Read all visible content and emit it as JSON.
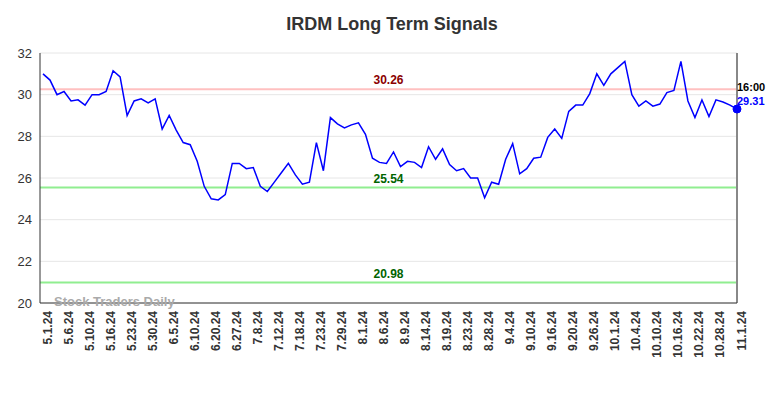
{
  "chart_data": {
    "type": "line",
    "title": "IRDM Long Term Signals",
    "categories": [
      "5.1.24",
      null,
      null,
      "5.6.24",
      null,
      null,
      "5.10.24",
      null,
      null,
      "5.16.24",
      null,
      null,
      "5.23.24",
      null,
      null,
      "5.30.24",
      null,
      null,
      "6.5.24",
      null,
      null,
      "6.10.24",
      null,
      null,
      "6.20.24",
      null,
      null,
      "6.27.24",
      null,
      null,
      "7.8.24",
      null,
      null,
      "7.12.24",
      null,
      null,
      "7.18.24",
      null,
      null,
      "7.23.24",
      null,
      null,
      "7.29.24",
      null,
      null,
      "8.1.24",
      null,
      null,
      "8.6.24",
      null,
      null,
      "8.9.24",
      null,
      null,
      "8.14.24",
      null,
      null,
      "8.19.24",
      null,
      null,
      "8.23.24",
      null,
      null,
      "8.28.24",
      null,
      null,
      "9.4.24",
      null,
      null,
      "9.10.24",
      null,
      null,
      "9.16.24",
      null,
      null,
      "9.20.24",
      null,
      null,
      "9.26.24",
      null,
      null,
      "10.1.24",
      null,
      null,
      "10.4.24",
      null,
      null,
      "10.10.24",
      null,
      null,
      "10.16.24",
      null,
      null,
      "10.22.24",
      null,
      null,
      "10.28.24",
      null,
      null,
      "11.1.24"
    ],
    "values": [
      31.0,
      30.7,
      30.0,
      30.15,
      29.7,
      29.75,
      29.5,
      30.0,
      30.0,
      30.15,
      31.15,
      30.85,
      29.0,
      29.7,
      29.8,
      29.6,
      29.8,
      28.35,
      29.0,
      28.3,
      27.7,
      27.6,
      26.8,
      25.6,
      25.0,
      24.95,
      25.2,
      26.7,
      26.7,
      26.45,
      26.5,
      25.6,
      25.35,
      25.8,
      26.25,
      26.7,
      26.15,
      25.7,
      25.8,
      27.7,
      26.35,
      28.9,
      28.6,
      28.4,
      28.55,
      28.65,
      28.1,
      26.95,
      26.75,
      26.7,
      27.25,
      26.55,
      26.8,
      26.75,
      26.5,
      27.5,
      26.9,
      27.4,
      26.65,
      26.35,
      26.45,
      26.0,
      26.0,
      25.05,
      25.8,
      25.7,
      26.9,
      27.65,
      26.2,
      26.45,
      26.95,
      27.0,
      27.95,
      28.35,
      27.9,
      29.2,
      29.5,
      29.5,
      30.05,
      31.0,
      30.45,
      31.0,
      31.3,
      31.6,
      30.0,
      29.45,
      29.7,
      29.45,
      29.55,
      30.1,
      30.2,
      31.6,
      29.7,
      28.9,
      29.75,
      28.95,
      29.75,
      29.65,
      29.5,
      29.31
    ],
    "color": "#0000ff",
    "ylim": [
      20,
      32
    ],
    "yticks": [
      20,
      22,
      24,
      26,
      28,
      30,
      32
    ],
    "grid": true,
    "reference_lines": [
      {
        "value": 30.26,
        "label": "30.26",
        "color": "#ffc0c0",
        "label_color": "#8b0000"
      },
      {
        "value": 25.54,
        "label": "25.54",
        "color": "#90ee90",
        "label_color": "#006400"
      },
      {
        "value": 20.98,
        "label": "20.98",
        "color": "#90ee90",
        "label_color": "#006400"
      }
    ],
    "last_point": {
      "time": "16:00",
      "value": 29.31
    },
    "watermark": "Stock Traders Daily"
  }
}
